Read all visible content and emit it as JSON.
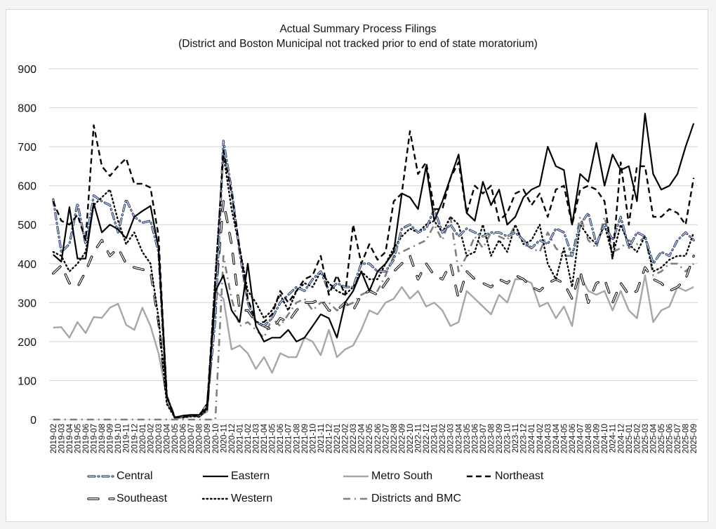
{
  "chart_data": {
    "type": "line",
    "title": "Actual Summary Process Filings",
    "subtitle": "(District and Boston Municipal not tracked prior to end of state moratorium)",
    "xlabel": "",
    "ylabel": "",
    "ylim": [
      0,
      900
    ],
    "yticks": [
      0,
      100,
      200,
      300,
      400,
      500,
      600,
      700,
      800,
      900
    ],
    "grid": true,
    "legend_position": "bottom",
    "x": [
      "2019-02",
      "2019-03",
      "2019-04",
      "2019-05",
      "2019-06",
      "2019-07",
      "2019-08",
      "2019-09",
      "2019-10",
      "2019-11",
      "2019-12",
      "2020-01",
      "2020-02",
      "2020-03",
      "2020-04",
      "2020-05",
      "2020-06",
      "2020-07",
      "2020-08",
      "2020-09",
      "2020-10",
      "2020-11",
      "2020-12",
      "2021-01",
      "2021-02",
      "2021-03",
      "2021-04",
      "2021-05",
      "2021-06",
      "2021-07",
      "2021-08",
      "2021-09",
      "2021-10",
      "2021-11",
      "2021-12",
      "2022-01",
      "2022-02",
      "2022-03",
      "2022-04",
      "2022-05",
      "2022-06",
      "2022-07",
      "2022-08",
      "2022-09",
      "2022-10",
      "2022-11",
      "2022-12",
      "2023-01",
      "2023-02",
      "2023-03",
      "2023-04",
      "2023-05",
      "2023-06",
      "2023-07",
      "2023-08",
      "2023-09",
      "2023-10",
      "2023-11",
      "2023-12",
      "2024-01",
      "2024-02",
      "2024-03",
      "2024-04",
      "2024-05",
      "2024-06",
      "2024-07",
      "2024-08",
      "2024-09",
      "2024-10",
      "2024-11",
      "2024-12",
      "2025-01",
      "2025-02",
      "2025-03",
      "2025-04",
      "2025-05",
      "2025-06",
      "2025-07",
      "2025-08",
      "2025-09"
    ],
    "series": [
      {
        "name": "Central",
        "style": "dash-dot-light",
        "color": "#1f3864",
        "values": [
          565,
          430,
          450,
          555,
          450,
          575,
          560,
          550,
          480,
          565,
          520,
          505,
          510,
          430,
          60,
          5,
          8,
          10,
          10,
          40,
          260,
          715,
          590,
          430,
          300,
          250,
          240,
          260,
          300,
          320,
          340,
          330,
          360,
          380,
          330,
          350,
          340,
          340,
          400,
          400,
          380,
          380,
          410,
          490,
          500,
          480,
          490,
          540,
          480,
          500,
          470,
          490,
          480,
          470,
          480,
          480,
          470,
          480,
          460,
          440,
          460,
          450,
          490,
          480,
          420,
          500,
          530,
          450,
          500,
          460,
          520,
          440,
          480,
          470,
          400,
          430,
          420,
          460,
          480,
          460
        ]
      },
      {
        "name": "Eastern",
        "style": "solid",
        "color": "#000000",
        "values": [
          423,
          405,
          545,
          413,
          413,
          555,
          480,
          500,
          488,
          465,
          520,
          535,
          548,
          440,
          60,
          5,
          10,
          12,
          12,
          30,
          330,
          370,
          280,
          250,
          400,
          240,
          200,
          210,
          210,
          230,
          200,
          210,
          240,
          270,
          260,
          210,
          300,
          330,
          380,
          330,
          380,
          400,
          430,
          580,
          570,
          540,
          650,
          510,
          560,
          620,
          680,
          530,
          510,
          610,
          550,
          590,
          500,
          520,
          570,
          590,
          600,
          700,
          650,
          640,
          500,
          630,
          610,
          710,
          600,
          680,
          640,
          650,
          560,
          785,
          630,
          590,
          600,
          630,
          700,
          760
        ]
      },
      {
        "name": "Metro South",
        "style": "solid-gray",
        "color": "#a6a6a6",
        "values": [
          236,
          237,
          210,
          250,
          222,
          263,
          261,
          287,
          297,
          243,
          230,
          287,
          240,
          170,
          60,
          5,
          5,
          8,
          8,
          20,
          330,
          310,
          180,
          190,
          170,
          130,
          160,
          120,
          170,
          160,
          160,
          210,
          200,
          165,
          230,
          160,
          180,
          190,
          230,
          280,
          270,
          300,
          310,
          340,
          310,
          330,
          290,
          300,
          280,
          240,
          250,
          330,
          310,
          290,
          270,
          320,
          300,
          360,
          360,
          350,
          290,
          300,
          260,
          290,
          240,
          370,
          330,
          320,
          330,
          280,
          330,
          280,
          260,
          370,
          250,
          280,
          290,
          340,
          330,
          340
        ]
      },
      {
        "name": "Northeast",
        "style": "dashed",
        "color": "#000000",
        "values": [
          560,
          510,
          500,
          525,
          460,
          755,
          650,
          625,
          650,
          670,
          605,
          605,
          595,
          470,
          60,
          5,
          8,
          10,
          10,
          40,
          360,
          690,
          580,
          440,
          310,
          250,
          250,
          270,
          330,
          300,
          330,
          360,
          370,
          420,
          320,
          370,
          320,
          500,
          400,
          450,
          410,
          430,
          560,
          580,
          740,
          630,
          660,
          540,
          540,
          620,
          660,
          530,
          600,
          580,
          600,
          510,
          530,
          580,
          590,
          550,
          580,
          520,
          590,
          600,
          500,
          590,
          600,
          590,
          560,
          410,
          660,
          500,
          650,
          650,
          520,
          520,
          540,
          530,
          500,
          620
        ]
      },
      {
        "name": "Southeast",
        "style": "double-light",
        "color": "#000000",
        "values": [
          375,
          395,
          350,
          340,
          380,
          430,
          460,
          420,
          440,
          400,
          390,
          385,
          380,
          250,
          50,
          5,
          8,
          10,
          8,
          30,
          310,
          560,
          450,
          280,
          280,
          250,
          240,
          230,
          260,
          250,
          280,
          300,
          300,
          310,
          280,
          280,
          300,
          280,
          320,
          330,
          320,
          350,
          380,
          400,
          420,
          360,
          400,
          370,
          360,
          400,
          310,
          380,
          360,
          350,
          340,
          360,
          350,
          370,
          360,
          340,
          330,
          350,
          360,
          350,
          310,
          380,
          300,
          350,
          360,
          300,
          350,
          320,
          330,
          390,
          360,
          350,
          330,
          340,
          360,
          420
        ]
      },
      {
        "name": "Western",
        "style": "dotted",
        "color": "#000000",
        "values": [
          430,
          420,
          380,
          400,
          430,
          550,
          570,
          590,
          510,
          450,
          480,
          430,
          400,
          260,
          40,
          5,
          5,
          8,
          8,
          25,
          370,
          680,
          540,
          440,
          330,
          300,
          260,
          280,
          320,
          280,
          330,
          350,
          340,
          380,
          350,
          330,
          320,
          340,
          380,
          360,
          360,
          400,
          440,
          470,
          490,
          480,
          500,
          510,
          480,
          520,
          500,
          420,
          430,
          500,
          420,
          460,
          430,
          500,
          450,
          460,
          500,
          400,
          360,
          440,
          340,
          500,
          470,
          450,
          500,
          420,
          500,
          450,
          430,
          470,
          380,
          390,
          410,
          420,
          420,
          480
        ]
      },
      {
        "name": "Districts and BMC",
        "style": "dash-dot-gray",
        "color": "#7f7f7f",
        "values": [
          0,
          0,
          0,
          0,
          0,
          0,
          0,
          0,
          0,
          0,
          0,
          0,
          0,
          0,
          0,
          0,
          0,
          0,
          0,
          0,
          0,
          420,
          310,
          240,
          250,
          230,
          210,
          260,
          240,
          270,
          300,
          310,
          280,
          300,
          300,
          280,
          290,
          300,
          320,
          330,
          330,
          370,
          420,
          430,
          440,
          450,
          460,
          500,
          460,
          520,
          380,
          420,
          470,
          440,
          480,
          470,
          460,
          500,
          450,
          440,
          430,
          480,
          440,
          420,
          420,
          520,
          460,
          440,
          520,
          430,
          440,
          460,
          450,
          470,
          370,
          380,
          400,
          400,
          380,
          400
        ]
      }
    ]
  },
  "legend": [
    {
      "label": "Central"
    },
    {
      "label": "Eastern"
    },
    {
      "label": "Metro South"
    },
    {
      "label": "Northeast"
    },
    {
      "label": "Southeast"
    },
    {
      "label": "Western"
    },
    {
      "label": "Districts and BMC"
    }
  ]
}
